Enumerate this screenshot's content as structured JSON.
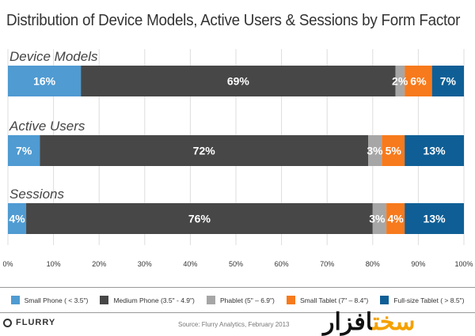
{
  "chart_data": {
    "type": "bar",
    "orientation": "horizontal-stacked-100",
    "title": "Distribution of Device Models, Active Users & Sessions by Form Factor",
    "categories": [
      "Device Models",
      "Active Users",
      "Sessions"
    ],
    "series": [
      {
        "name": "Small Phone ( < 3.5\")",
        "color": "#4f9bd2",
        "values": [
          16,
          7,
          4
        ]
      },
      {
        "name": "Medium Phone (3.5\" - 4.9\")",
        "color": "#474747",
        "values": [
          69,
          72,
          76
        ]
      },
      {
        "name": "Phablet (5\" – 6.9\")",
        "color": "#a6a6a6",
        "values": [
          2,
          3,
          3
        ]
      },
      {
        "name": "Small Tablet (7\" – 8.4\")",
        "color": "#f77a1c",
        "values": [
          6,
          5,
          4
        ]
      },
      {
        "name": "Full-size Tablet ( > 8.5\")",
        "color": "#0f5f96",
        "values": [
          7,
          13,
          13
        ]
      }
    ],
    "xlim": [
      0,
      100
    ],
    "xticks": [
      "0%",
      "10%",
      "20%",
      "30%",
      "40%",
      "50%",
      "60%",
      "70%",
      "80%",
      "90%",
      "100%"
    ],
    "grid": true,
    "legend": "bottom"
  },
  "footer": {
    "brand": "FLURRY",
    "source": "Source: Flurry Analytics, February 2013",
    "watermark_a": "افزار",
    "watermark_b": "سخت"
  }
}
